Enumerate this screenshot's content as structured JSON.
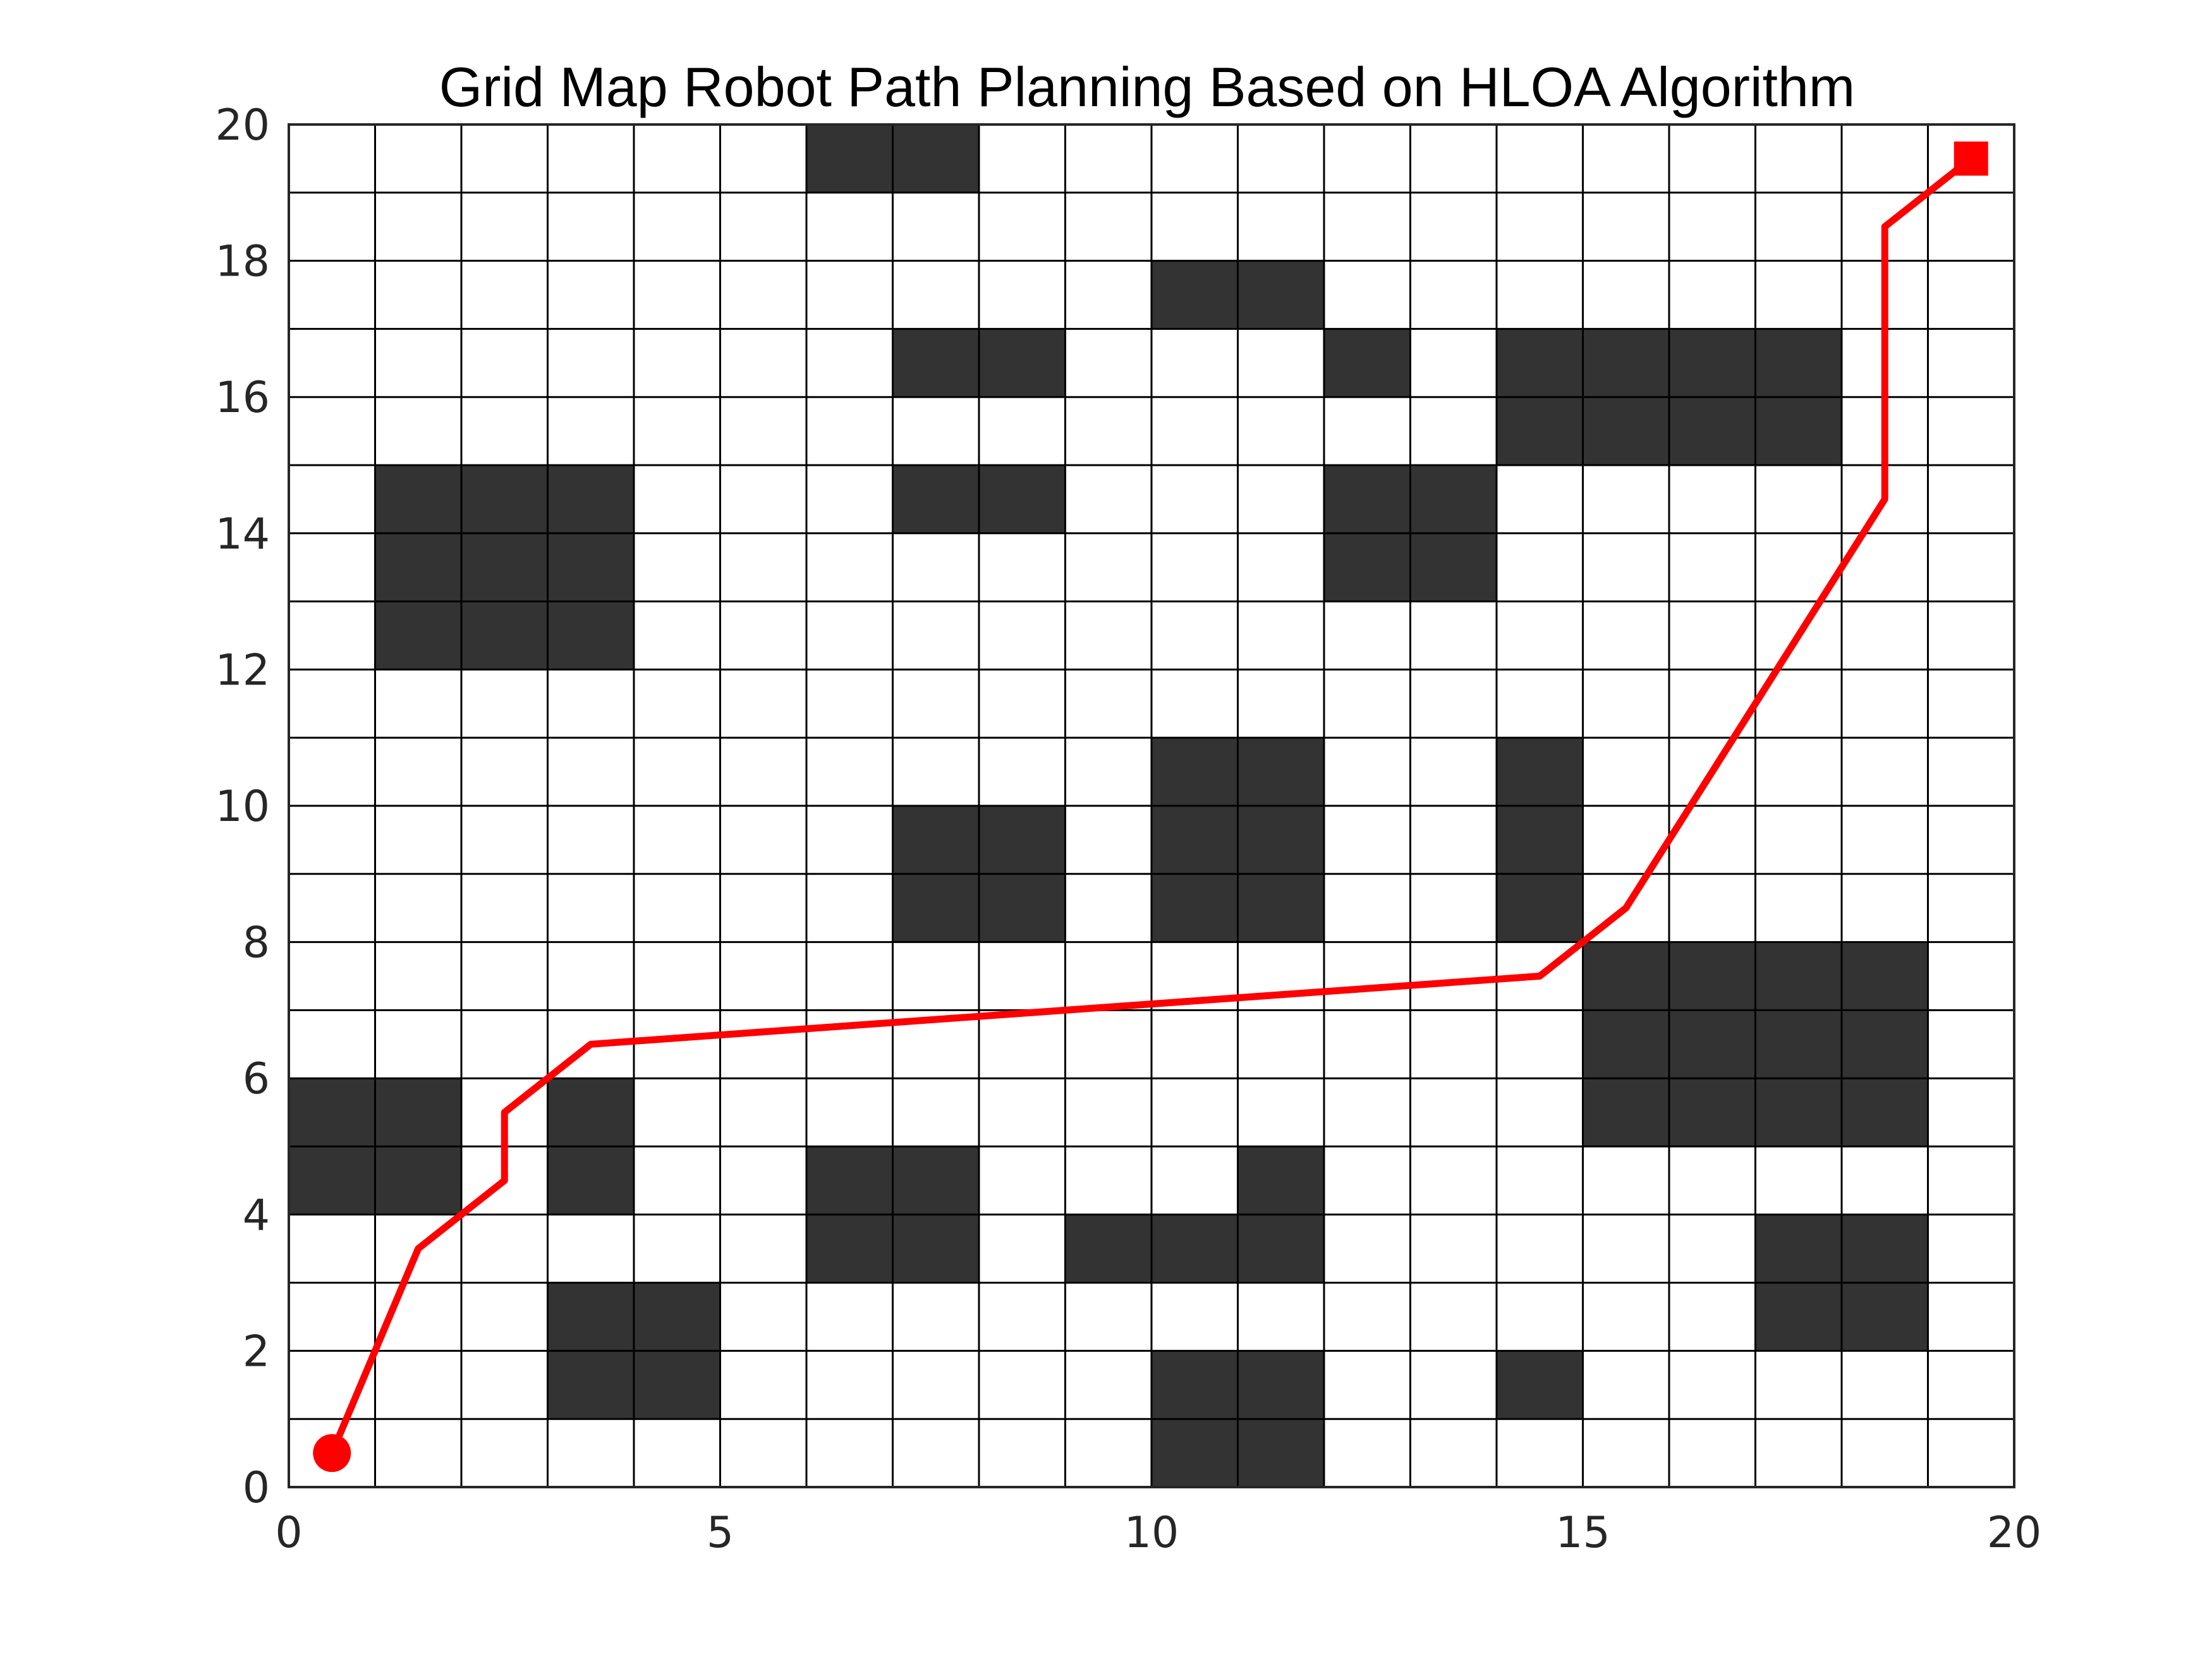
{
  "chart_data": {
    "type": "grid-path",
    "title": "Grid Map Robot Path Planning Based on HLOA Algorithm",
    "xlabel": "",
    "ylabel": "",
    "xlim": [
      0,
      20
    ],
    "ylim": [
      0,
      20
    ],
    "xticks": [
      0,
      5,
      10,
      15,
      20
    ],
    "yticks": [
      0,
      2,
      4,
      6,
      8,
      10,
      12,
      14,
      16,
      18,
      20
    ],
    "grid": {
      "x_spacing": 1,
      "y_spacing": 1,
      "shown": true
    },
    "obstacles": [
      [
        6,
        19
      ],
      [
        7,
        19
      ],
      [
        10,
        17
      ],
      [
        11,
        17
      ],
      [
        7,
        16
      ],
      [
        8,
        16
      ],
      [
        12,
        16
      ],
      [
        14,
        16
      ],
      [
        15,
        16
      ],
      [
        16,
        16
      ],
      [
        17,
        16
      ],
      [
        14,
        15
      ],
      [
        15,
        15
      ],
      [
        16,
        15
      ],
      [
        17,
        15
      ],
      [
        1,
        14
      ],
      [
        2,
        14
      ],
      [
        3,
        14
      ],
      [
        7,
        14
      ],
      [
        8,
        14
      ],
      [
        12,
        14
      ],
      [
        13,
        14
      ],
      [
        1,
        13
      ],
      [
        2,
        13
      ],
      [
        3,
        13
      ],
      [
        12,
        13
      ],
      [
        13,
        13
      ],
      [
        1,
        12
      ],
      [
        2,
        12
      ],
      [
        3,
        12
      ],
      [
        10,
        10
      ],
      [
        11,
        10
      ],
      [
        14,
        10
      ],
      [
        7,
        9
      ],
      [
        8,
        9
      ],
      [
        10,
        9
      ],
      [
        11,
        9
      ],
      [
        14,
        9
      ],
      [
        7,
        8
      ],
      [
        8,
        8
      ],
      [
        10,
        8
      ],
      [
        11,
        8
      ],
      [
        14,
        8
      ],
      [
        15,
        7
      ],
      [
        16,
        7
      ],
      [
        17,
        7
      ],
      [
        18,
        7
      ],
      [
        15,
        6
      ],
      [
        16,
        6
      ],
      [
        17,
        6
      ],
      [
        18,
        6
      ],
      [
        0,
        5
      ],
      [
        1,
        5
      ],
      [
        3,
        5
      ],
      [
        15,
        5
      ],
      [
        16,
        5
      ],
      [
        17,
        5
      ],
      [
        18,
        5
      ],
      [
        0,
        4
      ],
      [
        1,
        4
      ],
      [
        3,
        4
      ],
      [
        6,
        4
      ],
      [
        7,
        4
      ],
      [
        11,
        4
      ],
      [
        6,
        3
      ],
      [
        7,
        3
      ],
      [
        9,
        3
      ],
      [
        10,
        3
      ],
      [
        11,
        3
      ],
      [
        17,
        3
      ],
      [
        18,
        3
      ],
      [
        3,
        2
      ],
      [
        4,
        2
      ],
      [
        17,
        2
      ],
      [
        18,
        2
      ],
      [
        3,
        1
      ],
      [
        4,
        1
      ],
      [
        10,
        1
      ],
      [
        11,
        1
      ],
      [
        14,
        1
      ],
      [
        10,
        0
      ],
      [
        11,
        0
      ]
    ],
    "path": {
      "x": [
        0.5,
        1.5,
        2.5,
        2.5,
        3.5,
        14.5,
        15.5,
        18.5,
        18.5,
        19.5
      ],
      "y": [
        0.5,
        3.5,
        4.5,
        5.5,
        6.5,
        7.5,
        8.5,
        14.5,
        18.5,
        19.5
      ]
    },
    "start": {
      "x": 0.5,
      "y": 0.5,
      "marker": "circle"
    },
    "goal": {
      "x": 19.5,
      "y": 19.5,
      "marker": "square"
    },
    "colors": {
      "obstacle": "#333333",
      "free": "#ffffff",
      "grid_line": "#000000",
      "path": "#ff0000",
      "tick_text": "#262626"
    }
  }
}
